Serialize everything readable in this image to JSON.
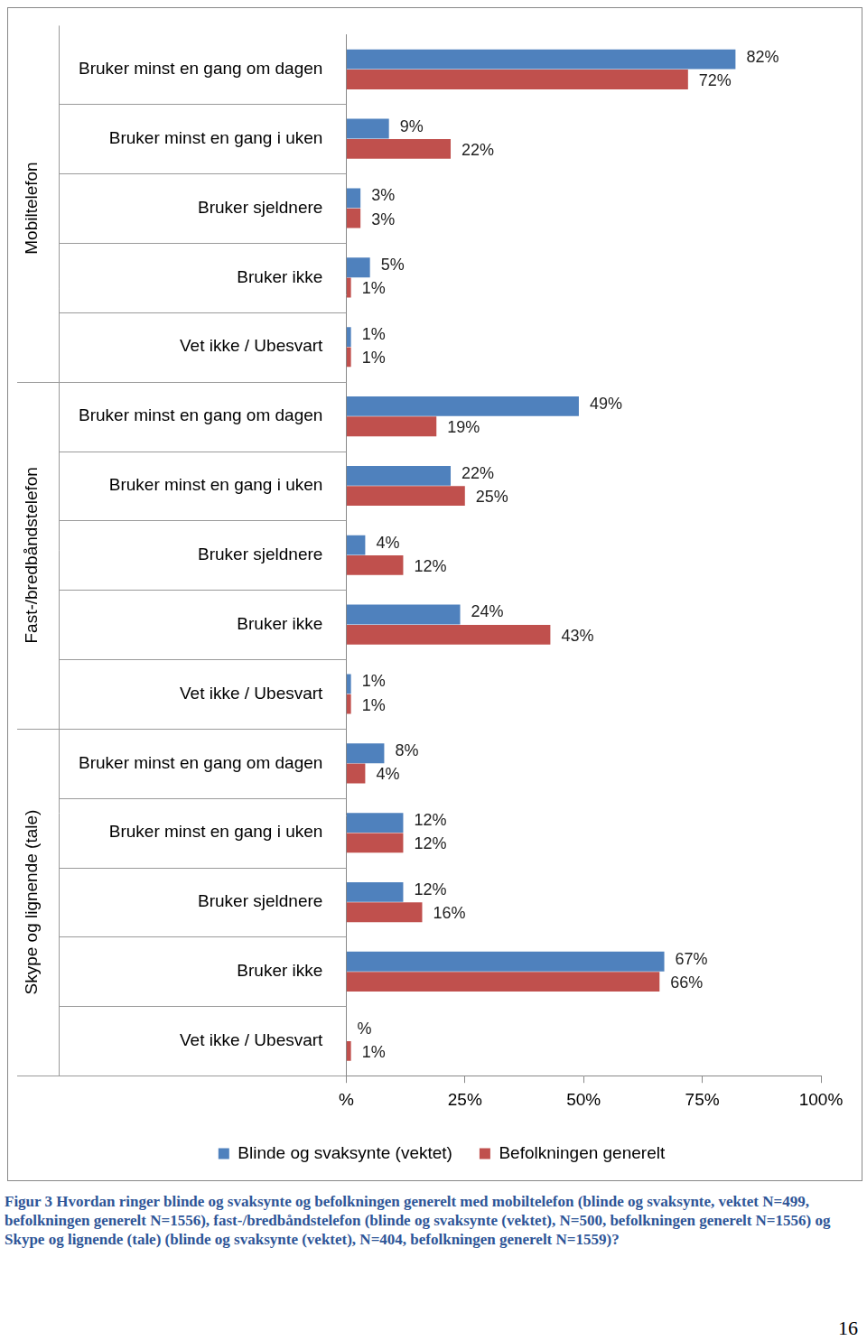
{
  "chart_data": {
    "type": "bar",
    "orientation": "horizontal",
    "groups": [
      {
        "name": "Mobiltelefon",
        "categories": [
          "Bruker minst en gang om dagen",
          "Bruker minst en gang i uken",
          "Bruker sjeldnere",
          "Bruker ikke",
          "Vet ikke / Ubesvart"
        ]
      },
      {
        "name": "Fast-/bredbåndstelefon",
        "categories": [
          "Bruker minst en gang om dagen",
          "Bruker minst en gang i uken",
          "Bruker sjeldnere",
          "Bruker ikke",
          "Vet ikke / Ubesvart"
        ]
      },
      {
        "name": "Skype og lignende (tale)",
        "categories": [
          "Bruker minst en gang om dagen",
          "Bruker minst en gang i uken",
          "Bruker sjeldnere",
          "Bruker ikke",
          "Vet ikke / Ubesvart"
        ]
      }
    ],
    "series": [
      {
        "name": "Blinde og svaksynte (vektet)",
        "color": "#4F81BD",
        "values": [
          82,
          9,
          3,
          5,
          1,
          49,
          22,
          4,
          24,
          1,
          8,
          12,
          12,
          67,
          0
        ],
        "value_labels": [
          "82%",
          "9%",
          "3%",
          "5%",
          "1%",
          "49%",
          "22%",
          "4%",
          "24%",
          "1%",
          "8%",
          "12%",
          "12%",
          "67%",
          "%"
        ]
      },
      {
        "name": "Befolkningen generelt",
        "color": "#C0504D",
        "values": [
          72,
          22,
          3,
          1,
          1,
          19,
          25,
          12,
          43,
          1,
          4,
          12,
          16,
          66,
          1
        ],
        "value_labels": [
          "72%",
          "22%",
          "3%",
          "1%",
          "1%",
          "19%",
          "25%",
          "12%",
          "43%",
          "1%",
          "4%",
          "12%",
          "16%",
          "66%",
          "1%"
        ]
      }
    ],
    "xlim": [
      0,
      100
    ],
    "xticks": [
      {
        "value": 0,
        "label": "%"
      },
      {
        "value": 25,
        "label": "25%"
      },
      {
        "value": 50,
        "label": "50%"
      },
      {
        "value": 75,
        "label": "75%"
      },
      {
        "value": 100,
        "label": "100%"
      }
    ],
    "grid": false,
    "legend": "bottom",
    "data_labels": true
  },
  "caption": "Figur 3 Hvordan ringer blinde og svaksynte og befolkningen generelt med mobiltelefon (blinde og svaksynte, vektet N=499, befolkningen generelt N=1556), fast-/bredbåndstelefon (blinde og svaksynte (vektet), N=500, befolkningen generelt N=1556) og Skype og lignende (tale) (blinde og svaksynte (vektet), N=404, befolkningen generelt N=1559)?",
  "page_number": "16"
}
